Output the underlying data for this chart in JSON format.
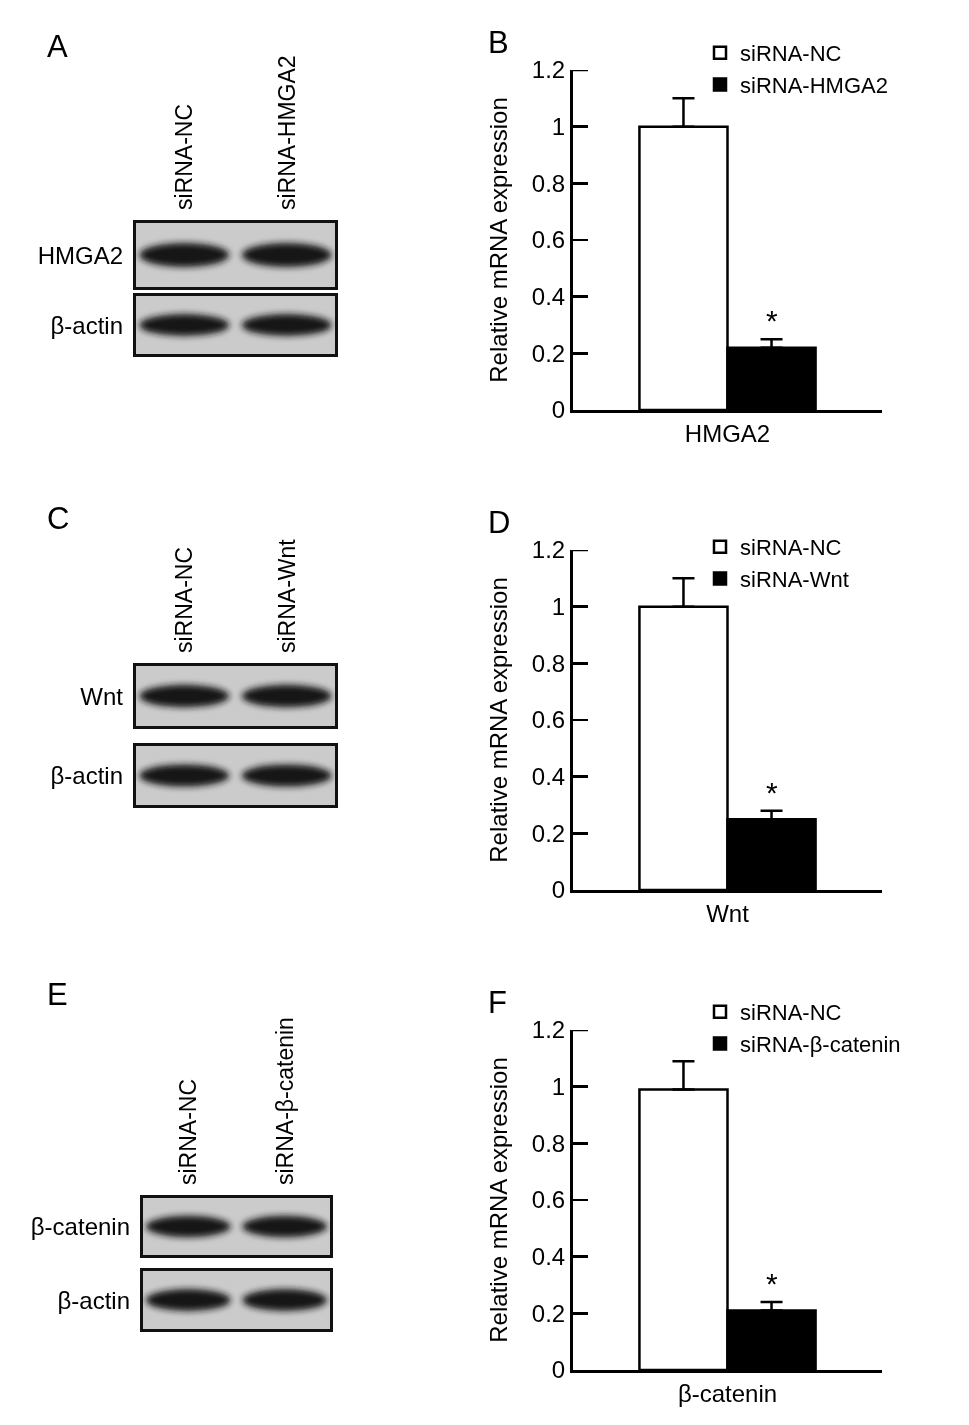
{
  "chart_data": [
    {
      "type": "other",
      "title": "A",
      "categories": [
        "siRNA-NC",
        "siRNA-HMGA2"
      ],
      "y_categories": [
        "HMGA2",
        "β-actin"
      ]
    },
    {
      "type": "bar",
      "title": "B",
      "categories": [
        "HMGA2"
      ],
      "ylabel": "Relative mRNA expression",
      "series": [
        {
          "name": "siRNA-NC",
          "color": "#ffffff",
          "values": [
            1.0
          ],
          "errors": [
            [
              1.0,
              1.1
            ]
          ]
        },
        {
          "name": "siRNA-HMGA2",
          "color": "#000000",
          "values": [
            0.22
          ],
          "errors": [
            [
              0.22,
              0.25
            ]
          ],
          "value_labels": [
            "*"
          ]
        }
      ],
      "ylim": [
        0,
        1.2
      ],
      "yticks": [
        0,
        0.2,
        0.4,
        0.6,
        0.8,
        1,
        1.2
      ],
      "legend": "top right"
    },
    {
      "type": "other",
      "title": "C",
      "categories": [
        "siRNA-NC",
        "siRNA-Wnt"
      ],
      "y_categories": [
        "Wnt",
        "β-actin"
      ]
    },
    {
      "type": "bar",
      "title": "D",
      "categories": [
        "Wnt"
      ],
      "ylabel": "Relative mRNA expression",
      "series": [
        {
          "name": "siRNA-NC",
          "color": "#ffffff",
          "values": [
            1.0
          ],
          "errors": [
            [
              1.0,
              1.1
            ]
          ]
        },
        {
          "name": "siRNA-Wnt",
          "color": "#000000",
          "values": [
            0.25
          ],
          "errors": [
            [
              0.25,
              0.28
            ]
          ],
          "value_labels": [
            "*"
          ]
        }
      ],
      "ylim": [
        0,
        1.2
      ],
      "yticks": [
        0,
        0.2,
        0.4,
        0.6,
        0.8,
        1,
        1.2
      ],
      "legend": "top right"
    },
    {
      "type": "other",
      "title": "E",
      "categories": [
        "siRNA-NC",
        "siRNA-β-catenin"
      ],
      "y_categories": [
        "β-catenin",
        "β-actin"
      ]
    },
    {
      "type": "bar",
      "title": "F",
      "categories": [
        "β-catenin"
      ],
      "ylabel": "Relative mRNA expression",
      "series": [
        {
          "name": "siRNA-NC",
          "color": "#ffffff",
          "values": [
            0.99
          ],
          "errors": [
            [
              0.99,
              1.09
            ]
          ]
        },
        {
          "name": "siRNA-β-catenin",
          "color": "#000000",
          "values": [
            0.21
          ],
          "errors": [
            [
              0.21,
              0.24
            ]
          ],
          "value_labels": [
            "*"
          ]
        }
      ],
      "ylim": [
        0,
        1.2
      ],
      "yticks": [
        0,
        0.2,
        0.4,
        0.6,
        0.8,
        1,
        1.2
      ],
      "legend": "top right"
    }
  ]
}
